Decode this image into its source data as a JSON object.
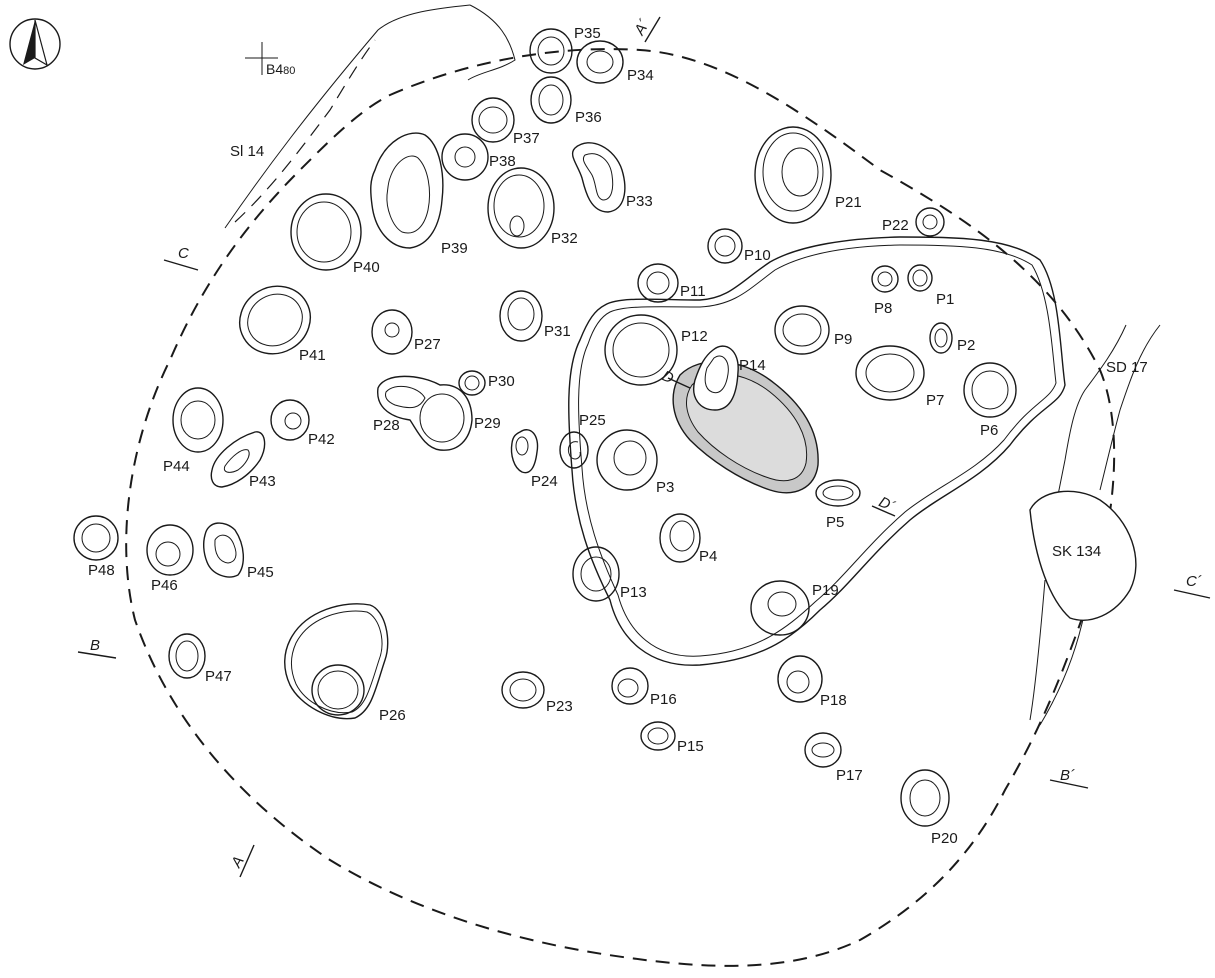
{
  "north_arrow": {
    "icon": "north-arrow-icon"
  },
  "grid_marker": {
    "icon": "grid-cross-icon",
    "label": "B4",
    "sublabel": "80"
  },
  "features": {
    "sl14": "Sl 14",
    "sd17": "SD 17",
    "sk134": "SK 134"
  },
  "sections": {
    "a": "A",
    "a_prime": "A´",
    "b": "B",
    "b_prime": "B´",
    "c": "C",
    "c_prime": "C´",
    "d": "D",
    "d_prime": "D´"
  },
  "pits": {
    "p1": "P1",
    "p2": "P2",
    "p3": "P3",
    "p4": "P4",
    "p5": "P5",
    "p6": "P6",
    "p7": "P7",
    "p8": "P8",
    "p9": "P9",
    "p10": "P10",
    "p11": "P11",
    "p12": "P12",
    "p13": "P13",
    "p14": "P14",
    "p15": "P15",
    "p16": "P16",
    "p17": "P17",
    "p18": "P18",
    "p19": "P19",
    "p20": "P20",
    "p21": "P21",
    "p22": "P22",
    "p23": "P23",
    "p24": "P24",
    "p25": "P25",
    "p26": "P26",
    "p27": "P27",
    "p28": "P28",
    "p29": "P29",
    "p30": "P30",
    "p31": "P31",
    "p32": "P32",
    "p33": "P33",
    "p34": "P34",
    "p35": "P35",
    "p36": "P36",
    "p37": "P37",
    "p38": "P38",
    "p39": "P39",
    "p40": "P40",
    "p41": "P41",
    "p42": "P42",
    "p43": "P43",
    "p44": "P44",
    "p45": "P45",
    "p46": "P46",
    "p47": "P47",
    "p48": "P48"
  },
  "colors": {
    "ink": "#1a1a1a",
    "hearth_fill": "#c8c8c8",
    "hearth_inner": "#dcdcdc"
  }
}
